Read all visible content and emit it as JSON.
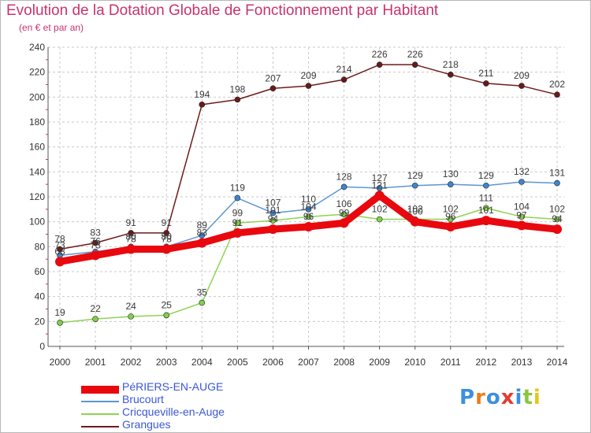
{
  "chart_data": {
    "type": "line",
    "title": "Evolution de la Dotation Globale de Fonctionnement par Habitant",
    "subtitle": "(en € et par an)",
    "xlabel": "",
    "ylabel": "",
    "x": [
      2000,
      2001,
      2002,
      2003,
      2004,
      2005,
      2006,
      2007,
      2008,
      2009,
      2010,
      2011,
      2012,
      2013,
      2014
    ],
    "ylim": [
      0,
      240
    ],
    "yticks": [
      0,
      20,
      40,
      60,
      80,
      100,
      120,
      140,
      160,
      180,
      200,
      220,
      240
    ],
    "grid": true,
    "legend_position": "bottom-left",
    "series": [
      {
        "name": "PéRIERS-EN-AUGE",
        "color": "#e8080e",
        "values": [
          68,
          73,
          78,
          78,
          83,
          91,
          94,
          96,
          99,
          121,
          100,
          96,
          101,
          97,
          94
        ]
      },
      {
        "name": "Brucourt",
        "color": "#5c96d0",
        "values": [
          73,
          76,
          80,
          80,
          89,
          119,
          107,
          110,
          128,
          127,
          129,
          130,
          129,
          132,
          131
        ]
      },
      {
        "name": "Cricqueville-en-Auge",
        "color": "#8ed352",
        "values": [
          19,
          22,
          24,
          25,
          35,
          99,
          101,
          104,
          106,
          102,
          102,
          102,
          111,
          104,
          102
        ]
      },
      {
        "name": "Grangues",
        "color": "#6e1a1a",
        "values": [
          78,
          83,
          91,
          91,
          194,
          198,
          207,
          209,
          214,
          226,
          226,
          218,
          211,
          209,
          202
        ]
      }
    ]
  },
  "logo": {
    "letters": [
      "P",
      "r",
      "o",
      "x",
      "i",
      "t",
      "i"
    ]
  }
}
